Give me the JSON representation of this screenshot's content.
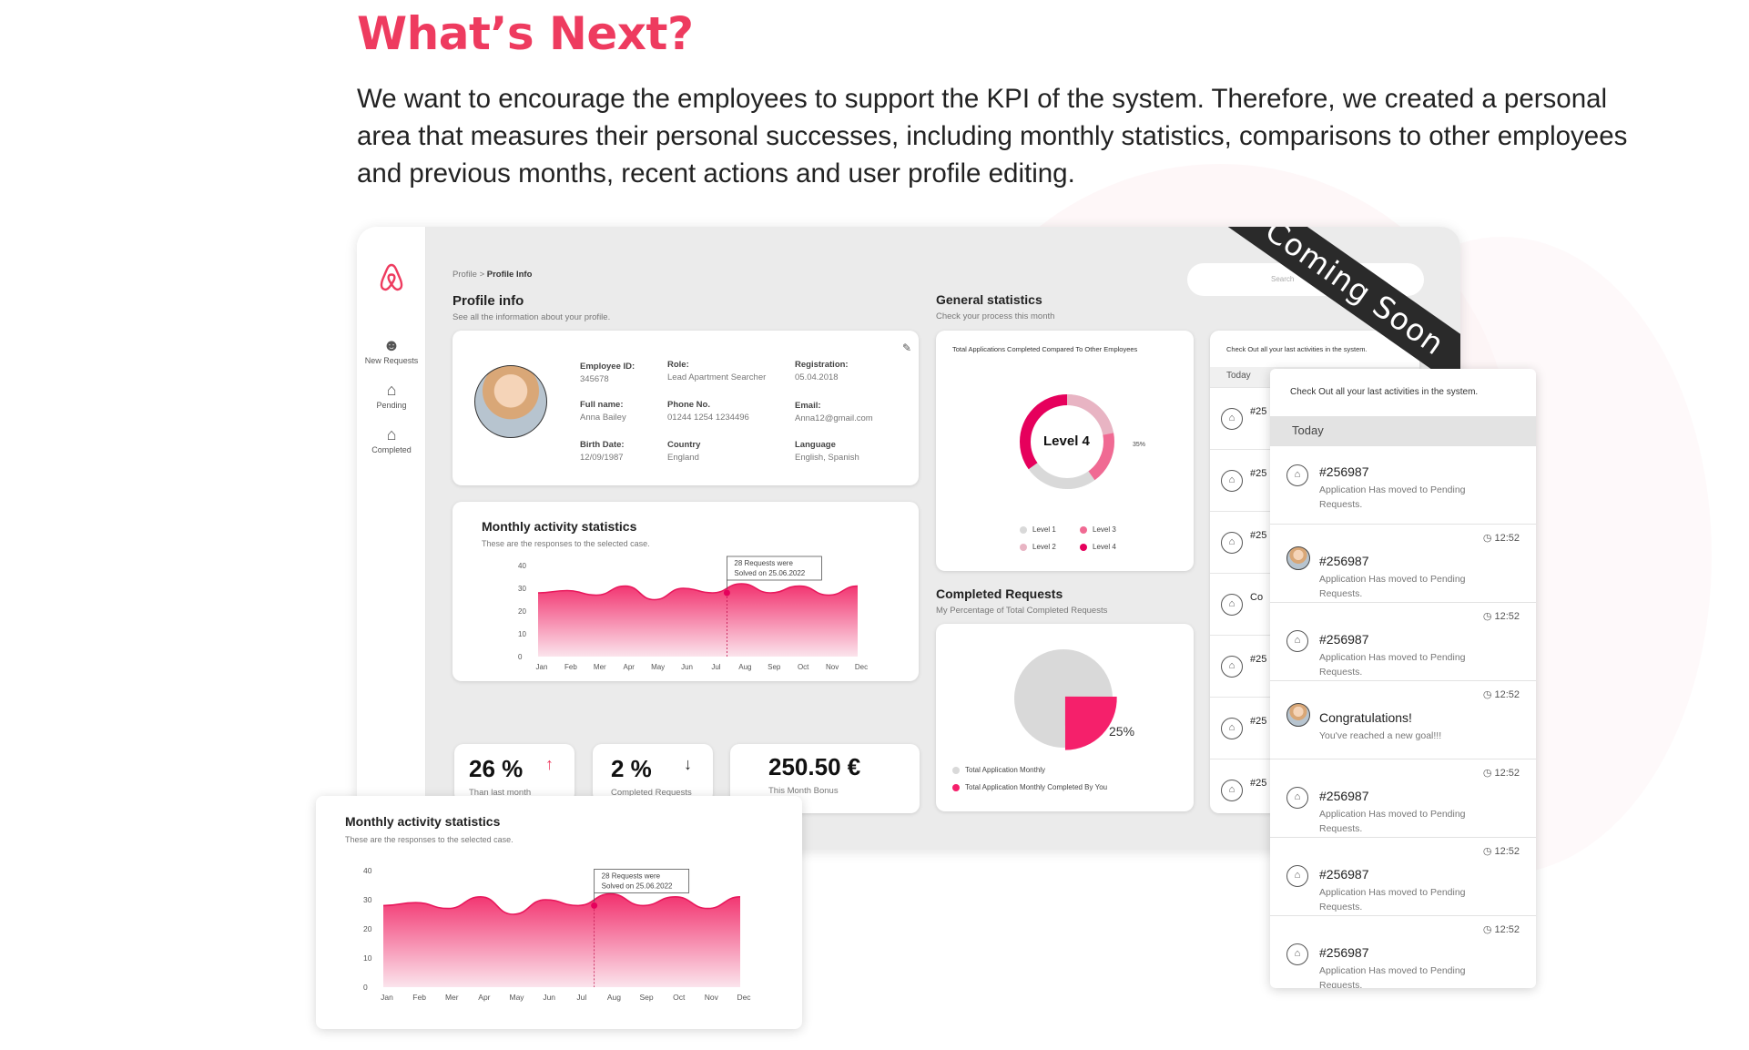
{
  "page": {
    "heading": "What’s Next?",
    "intro": "We want to encourage the employees to support the KPI of the system. Therefore, we created a personal area that measures their personal successes, including monthly statistics, comparisons to other employees and previous months, recent actions and user profile editing."
  },
  "colors": {
    "accent": "#ee3b5f",
    "pink": "#f5206b",
    "light_pink": "#f7b6c8",
    "grey": "#d9d9d9"
  },
  "sidebar": {
    "items": [
      {
        "label": "New Requests",
        "icon": "add-user-icon"
      },
      {
        "label": "Pending",
        "icon": "house-pending-icon"
      },
      {
        "label": "Completed",
        "icon": "house-check-icon"
      }
    ]
  },
  "header": {
    "breadcrumb_root": "Profile",
    "breadcrumb_sep": " > ",
    "breadcrumb_current": "Profile Info",
    "search_placeholder": "Search",
    "ribbon": "Coming Soon"
  },
  "profile": {
    "title": "Profile info",
    "subtitle": "See all the information about your profile.",
    "fields": {
      "employee_id_label": "Employee ID:",
      "employee_id": "345678",
      "role_label": "Role:",
      "role": "Lead Apartment Searcher",
      "registration_label": "Registration:",
      "registration": "05.04.2018",
      "full_name_label": "Full name:",
      "full_name": "Anna Bailey",
      "phone_label": "Phone No.",
      "phone": "01244 1254 1234496",
      "email_label": "Email:",
      "email": "Anna12@gmail.com",
      "birth_label": "Birth Date:",
      "birth": "12/09/1987",
      "country_label": "Country",
      "country": "England",
      "language_label": "Language",
      "language": "English, Spanish"
    }
  },
  "monthly": {
    "title": "Monthly activity statistics",
    "subtitle": "These are the responses to the selected case.",
    "tooltip_line1": "28 Requests were",
    "tooltip_line2": "Solved on 25.06.2022"
  },
  "stats": [
    {
      "value": "26 %",
      "label": "Than last month",
      "trend": "up"
    },
    {
      "value": "2 %",
      "label": "Completed Requests",
      "trend": "down"
    },
    {
      "value": "250.50 €",
      "label": "This Month Bonus",
      "trend": ""
    }
  ],
  "general": {
    "title": "General statistics",
    "subtitle": "Check your process this month",
    "card_title": "Total Applications Completed Compared To Other Employees",
    "center": "Level 4",
    "percent": "35%",
    "legend": [
      "Level 1",
      "Level 3",
      "Level 2",
      "Level 4"
    ]
  },
  "completed": {
    "title": "Completed Requests",
    "subtitle": "My Percentage of Total Completed Requests",
    "percent": "25%",
    "legend": [
      "Total Application Monthly",
      "Total Application Monthly Completed By You"
    ]
  },
  "activity_bg": {
    "title": "Check Out all your last activities in the system.",
    "today": "Today",
    "rows": [
      "#25",
      "#25",
      "#25",
      "Co",
      "#25",
      "#25",
      "#25"
    ]
  },
  "activity_panel": {
    "title": "Check Out all your last activities in the system.",
    "today": "Today",
    "rows": [
      {
        "id": "#256987",
        "desc": "Application Has moved to Pending Requests.",
        "time": "",
        "icon": "house-pending-icon"
      },
      {
        "id": "#256987",
        "desc": "Application Has moved to Pending Requests.",
        "time": "12:52",
        "icon": "avatar"
      },
      {
        "id": "#256987",
        "desc": "Application Has moved to Pending Requests.",
        "time": "12:52",
        "icon": "house-pending-icon"
      },
      {
        "id": "Congratulations!",
        "desc": "You've reached a new goal!!!",
        "time": "12:52",
        "icon": "avatar"
      },
      {
        "id": "#256987",
        "desc": "Application Has moved to Pending Requests.",
        "time": "12:52",
        "icon": "house-pending-icon"
      },
      {
        "id": "#256987",
        "desc": "Application Has moved to Pending Requests.",
        "time": "12:52",
        "icon": "house-pending-icon"
      },
      {
        "id": "#256987",
        "desc": "Application Has moved to Pending Requests.",
        "time": "12:52",
        "icon": "house-pending-icon"
      }
    ]
  },
  "chart_data": [
    {
      "type": "area",
      "x": [
        "Jan",
        "Feb",
        "Mer",
        "Apr",
        "May",
        "Jun",
        "Jul",
        "Aug",
        "Sep",
        "Oct",
        "Nov",
        "Dec"
      ],
      "values": [
        28,
        29,
        27,
        31,
        25,
        30,
        28,
        32,
        28,
        31,
        27,
        31
      ],
      "yticks": [
        0,
        10,
        20,
        30,
        40
      ],
      "ylim": [
        0,
        40
      ],
      "highlight": {
        "x": "Jul",
        "value": 28
      }
    },
    {
      "type": "pie",
      "values": [
        75,
        25
      ],
      "labels": [
        "Total Application Monthly",
        "Total Application Monthly Completed By You"
      ],
      "shown_percent": "25%"
    },
    {
      "type": "pie",
      "values": [
        35,
        65
      ],
      "labels": [
        "Level 4",
        ""
      ],
      "shown_percent": "35%"
    }
  ]
}
